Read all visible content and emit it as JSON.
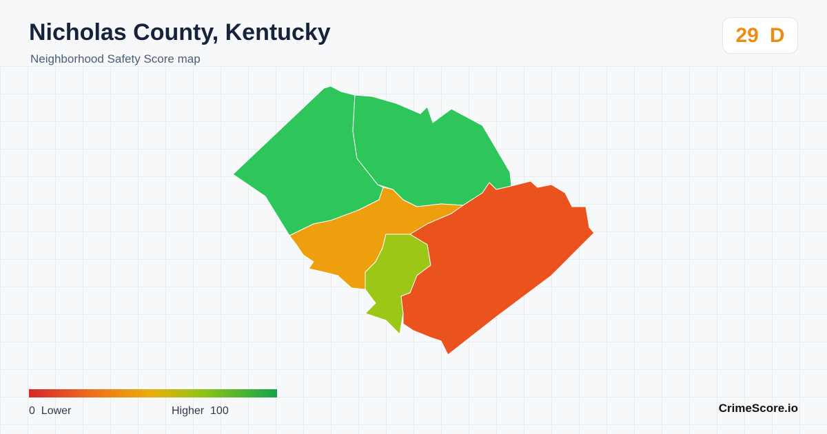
{
  "header": {
    "title": "Nicholas County, Kentucky",
    "subtitle": "Neighborhood Safety Score map"
  },
  "score": {
    "value": 29,
    "grade": "D"
  },
  "legend": {
    "min": 0,
    "min_label": "Lower",
    "max_label": "Higher",
    "max": 100
  },
  "footer": {
    "brand": "CrimeScore.io"
  }
}
